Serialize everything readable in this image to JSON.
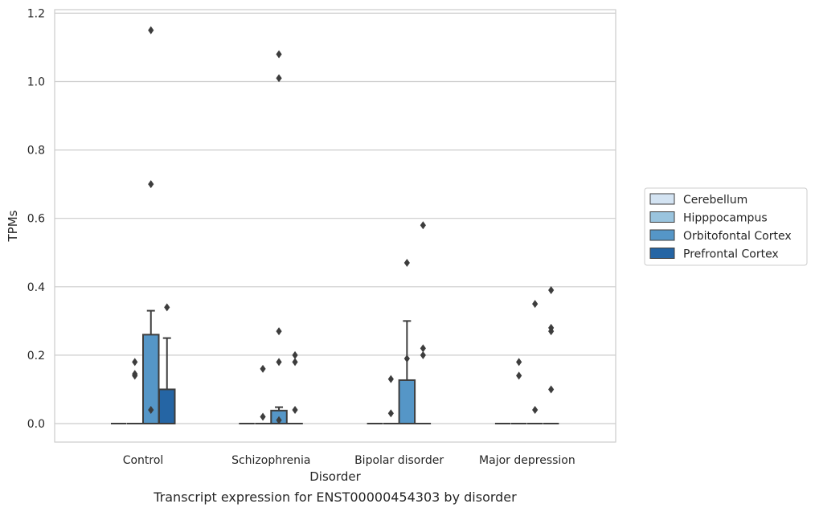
{
  "chart_data": {
    "type": "box",
    "title": "",
    "caption": "Transcript expression for ENST00000454303 by disorder",
    "xlabel": "Disorder",
    "ylabel": "TPMs",
    "ylim": [
      -0.055,
      1.21
    ],
    "yticks": [
      0.0,
      0.2,
      0.4,
      0.6,
      0.8,
      1.0,
      1.2
    ],
    "ytick_labels": [
      "0.0",
      "0.2",
      "0.4",
      "0.6",
      "0.8",
      "1.0",
      "1.2"
    ],
    "grid": "horizontal",
    "legend_position": "right",
    "categories": [
      "Control",
      "Schizophrenia",
      "Bipolar disorder",
      "Major depression"
    ],
    "series": [
      {
        "name": "Cerebellum",
        "color": "#d3e3f2",
        "boxes": [
          {
            "q1": 0,
            "median": 0,
            "q3": 0,
            "whisker_low": 0,
            "whisker_high": 0,
            "outliers": []
          },
          {
            "q1": 0,
            "median": 0,
            "q3": 0,
            "whisker_low": 0,
            "whisker_high": 0,
            "outliers": []
          },
          {
            "q1": 0,
            "median": 0,
            "q3": 0,
            "whisker_low": 0,
            "whisker_high": 0,
            "outliers": []
          },
          {
            "q1": 0,
            "median": 0,
            "q3": 0,
            "whisker_low": 0,
            "whisker_high": 0,
            "outliers": []
          }
        ]
      },
      {
        "name": "Hipppocampus",
        "color": "#9ac4de",
        "boxes": [
          {
            "q1": 0,
            "median": 0,
            "q3": 0,
            "whisker_low": 0,
            "whisker_high": 0,
            "outliers": [
              0.18,
              0.145,
              0.14
            ]
          },
          {
            "q1": 0,
            "median": 0,
            "q3": 0,
            "whisker_low": 0,
            "whisker_high": 0,
            "outliers": [
              0.16,
              0.02
            ]
          },
          {
            "q1": 0,
            "median": 0,
            "q3": 0,
            "whisker_low": 0,
            "whisker_high": 0,
            "outliers": [
              0.13,
              0.03
            ]
          },
          {
            "q1": 0,
            "median": 0,
            "q3": 0,
            "whisker_low": 0,
            "whisker_high": 0,
            "outliers": [
              0.18,
              0.14
            ]
          }
        ]
      },
      {
        "name": "Orbitofontal Cortex",
        "color": "#5596c7",
        "boxes": [
          {
            "q1": 0,
            "median": 0,
            "q3": 0.26,
            "whisker_low": 0,
            "whisker_high": 0.33,
            "outliers": [
              1.15,
              0.7,
              0.04
            ]
          },
          {
            "q1": 0,
            "median": 0,
            "q3": 0.038,
            "whisker_low": 0,
            "whisker_high": 0.048,
            "outliers": [
              1.08,
              1.01,
              0.27,
              0.18,
              0.01
            ]
          },
          {
            "q1": 0,
            "median": 0,
            "q3": 0.127,
            "whisker_low": 0,
            "whisker_high": 0.3,
            "outliers": [
              0.47,
              0.19
            ]
          },
          {
            "q1": 0,
            "median": 0,
            "q3": 0,
            "whisker_low": 0,
            "whisker_high": 0,
            "outliers": [
              0.35,
              0.04
            ]
          }
        ]
      },
      {
        "name": "Prefrontal Cortex",
        "color": "#2565a4",
        "boxes": [
          {
            "q1": 0,
            "median": 0,
            "q3": 0.1,
            "whisker_low": 0,
            "whisker_high": 0.25,
            "outliers": [
              0.34
            ]
          },
          {
            "q1": 0,
            "median": 0,
            "q3": 0,
            "whisker_low": 0,
            "whisker_high": 0,
            "outliers": [
              0.2,
              0.18,
              0.04
            ]
          },
          {
            "q1": 0,
            "median": 0,
            "q3": 0,
            "whisker_low": 0,
            "whisker_high": 0,
            "outliers": [
              0.58,
              0.22,
              0.2
            ]
          },
          {
            "q1": 0,
            "median": 0,
            "q3": 0,
            "whisker_low": 0,
            "whisker_high": 0,
            "outliers": [
              0.39,
              0.28,
              0.27,
              0.1
            ]
          }
        ]
      }
    ]
  }
}
